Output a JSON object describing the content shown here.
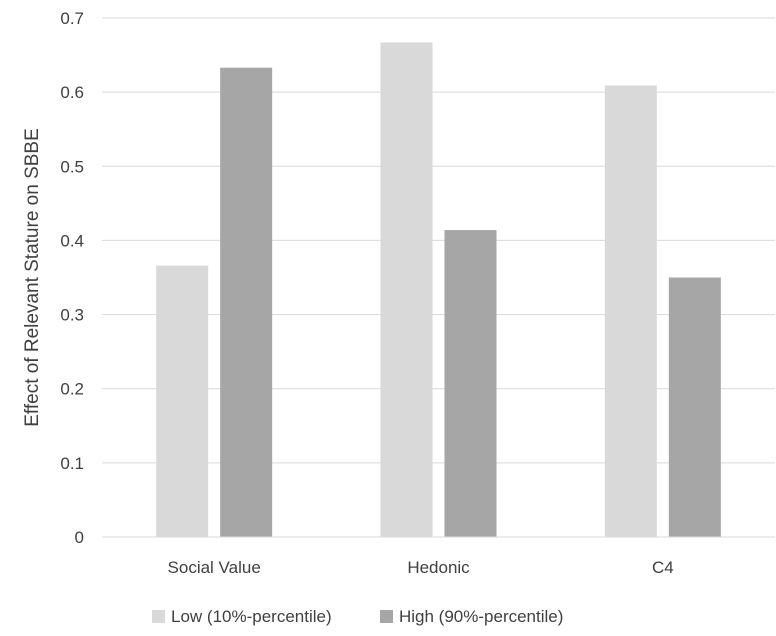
{
  "chart_data": {
    "type": "bar",
    "categories": [
      "Social Value",
      "Hedonic",
      "C4"
    ],
    "series": [
      {
        "name": "Low (10%-percentile)",
        "values": [
          0.366,
          0.667,
          0.609
        ],
        "color": "#d9d9d9"
      },
      {
        "name": "High (90%-percentile)",
        "values": [
          0.633,
          0.414,
          0.35
        ],
        "color": "#a6a6a6"
      }
    ],
    "title": "",
    "xlabel": "",
    "ylabel": "Effect of Relevant Stature on SBBE",
    "ylim": [
      0,
      0.7
    ],
    "yticks": [
      "0",
      "0.1",
      "0.2",
      "0.3",
      "0.4",
      "0.5",
      "0.6",
      "0.7"
    ],
    "grid": true,
    "legend": "bottom"
  }
}
